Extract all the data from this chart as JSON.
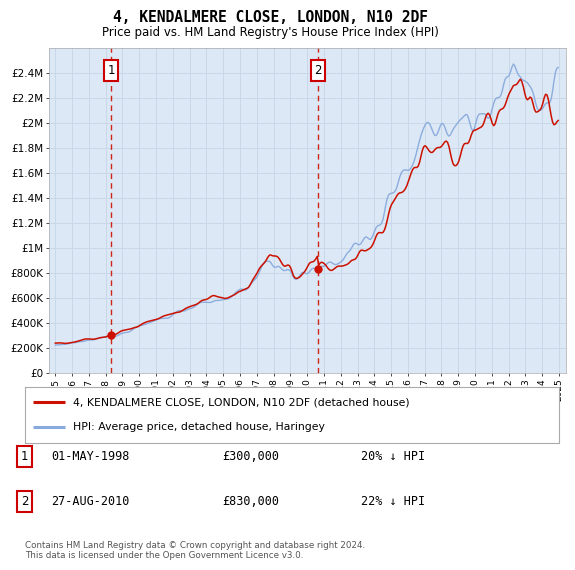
{
  "title": "4, KENDALMERE CLOSE, LONDON, N10 2DF",
  "subtitle": "Price paid vs. HM Land Registry's House Price Index (HPI)",
  "plot_bg_color": "#dce8f5",
  "grid_color": "#c8d8e8",
  "hpi_color": "#88aadd",
  "price_color": "#cc1100",
  "dashed_line_color": "#cc1100",
  "legend_line1": "4, KENDALMERE CLOSE, LONDON, N10 2DF (detached house)",
  "legend_line2": "HPI: Average price, detached house, Haringey",
  "footer": "Contains HM Land Registry data © Crown copyright and database right 2024.\nThis data is licensed under the Open Government Licence v3.0.",
  "ylim": [
    0,
    2600000
  ],
  "yticks": [
    0,
    200000,
    400000,
    600000,
    800000,
    1000000,
    1200000,
    1400000,
    1600000,
    1800000,
    2000000,
    2200000,
    2400000
  ],
  "ytick_labels": [
    "£0",
    "£200K",
    "£400K",
    "£600K",
    "£800K",
    "£1M",
    "£1.2M",
    "£1.4M",
    "£1.6M",
    "£1.8M",
    "£2M",
    "£2.2M",
    "£2.4M"
  ],
  "xmin": 1994.6,
  "xmax": 2025.4,
  "sale1_date": 1998.33,
  "sale1_price": 300000,
  "sale1_text": "01-MAY-1998",
  "sale1_amount": "£300,000",
  "sale1_pct": "20% ↓ HPI",
  "sale2_date": 2010.65,
  "sale2_price": 830000,
  "sale2_text": "27-AUG-2010",
  "sale2_amount": "£830,000",
  "sale2_pct": "22% ↓ HPI"
}
